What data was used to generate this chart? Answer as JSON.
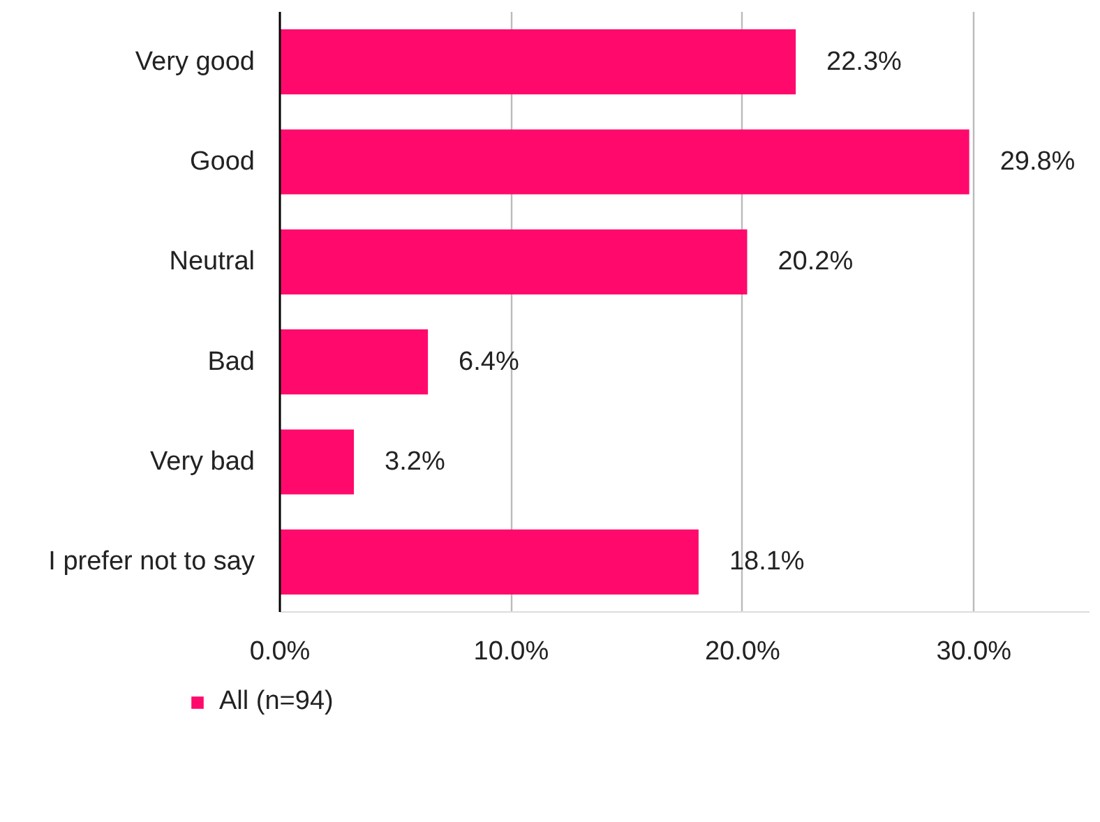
{
  "chart_data": {
    "type": "bar",
    "orientation": "horizontal",
    "categories": [
      "Very good",
      "Good",
      "Neutral",
      "Bad",
      "Very bad",
      "I prefer not to say"
    ],
    "series": [
      {
        "name": "All (n=94)",
        "color": "#ff0a6c",
        "values": [
          22.3,
          29.8,
          20.2,
          6.4,
          3.2,
          18.1
        ],
        "value_labels": [
          "22.3%",
          "29.8%",
          "20.2%",
          "6.4%",
          "3.2%",
          "18.1%"
        ]
      }
    ],
    "xlim": [
      0,
      35
    ],
    "xticks": [
      {
        "value": 0,
        "label": "0.0%"
      },
      {
        "value": 10,
        "label": "10.0%"
      },
      {
        "value": 20,
        "label": "20.0%"
      },
      {
        "value": 30,
        "label": "30.0%"
      }
    ],
    "grid": "x",
    "legend": "bottom left"
  }
}
